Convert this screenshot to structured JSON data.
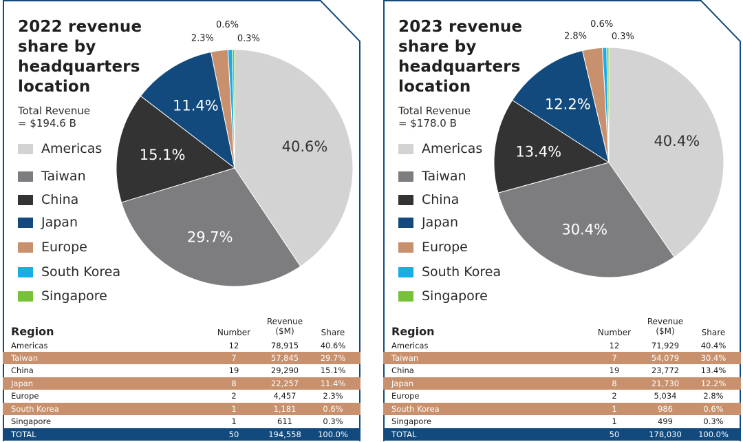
{
  "colors": {
    "Americas": "#d3d3d3",
    "Taiwan": "#7d7d80",
    "China": "#333333",
    "Japan": "#124a7e",
    "Europe": "#c8906c",
    "South Korea": "#17aee8",
    "Singapore": "#78c23a",
    "frame": "#124a7e",
    "row_highlight": "#c8906c"
  },
  "table_headers": {
    "region": "Region",
    "number": "Number",
    "revenue_line1": "Revenue",
    "revenue_line2": "($M)",
    "share": "Share"
  },
  "chart_data": [
    {
      "type": "pie",
      "title": "2022 revenue share by headquarters location",
      "subtitle_line1": "Total Revenue",
      "subtitle_line2": "= $194.6 B",
      "legend": [
        "Americas",
        "Taiwan",
        "China",
        "Japan",
        "Europe",
        "South Korea",
        "Singapore"
      ],
      "slices": [
        {
          "label": "Americas",
          "value": 40.6,
          "text": "40.6%"
        },
        {
          "label": "Taiwan",
          "value": 29.7,
          "text": "29.7%"
        },
        {
          "label": "China",
          "value": 15.1,
          "text": "15.1%"
        },
        {
          "label": "Japan",
          "value": 11.4,
          "text": "11.4%"
        },
        {
          "label": "Europe",
          "value": 2.3,
          "text": "2.3%"
        },
        {
          "label": "South Korea",
          "value": 0.6,
          "text": "0.6%"
        },
        {
          "label": "Singapore",
          "value": 0.3,
          "text": "0.3%"
        }
      ],
      "table": {
        "rows": [
          {
            "region": "Americas",
            "number": "12",
            "revenue": "78,915",
            "share": "40.6%"
          },
          {
            "region": "Taiwan",
            "number": "7",
            "revenue": "57,845",
            "share": "29.7%"
          },
          {
            "region": "China",
            "number": "19",
            "revenue": "29,290",
            "share": "15.1%"
          },
          {
            "region": "Japan",
            "number": "8",
            "revenue": "22,257",
            "share": "11.4%"
          },
          {
            "region": "Europe",
            "number": "2",
            "revenue": "4,457",
            "share": "2.3%"
          },
          {
            "region": "South Korea",
            "number": "1",
            "revenue": "1,181",
            "share": "0.6%"
          },
          {
            "region": "Singapore",
            "number": "1",
            "revenue": "611",
            "share": "0.3%"
          }
        ],
        "total": {
          "region": "TOTAL",
          "number": "50",
          "revenue": "194,558",
          "share": "100.0%"
        }
      }
    },
    {
      "type": "pie",
      "title": "2023 revenue share by headquarters location",
      "subtitle_line1": "Total Revenue",
      "subtitle_line2": "= $178.0 B",
      "legend": [
        "Americas",
        "Taiwan",
        "China",
        "Japan",
        "Europe",
        "South Korea",
        "Singapore"
      ],
      "slices": [
        {
          "label": "Americas",
          "value": 40.4,
          "text": "40.4%"
        },
        {
          "label": "Taiwan",
          "value": 30.4,
          "text": "30.4%"
        },
        {
          "label": "China",
          "value": 13.4,
          "text": "13.4%"
        },
        {
          "label": "Japan",
          "value": 12.2,
          "text": "12.2%"
        },
        {
          "label": "Europe",
          "value": 2.8,
          "text": "2.8%"
        },
        {
          "label": "South Korea",
          "value": 0.6,
          "text": "0.6%"
        },
        {
          "label": "Singapore",
          "value": 0.3,
          "text": "0.3%"
        }
      ],
      "table": {
        "rows": [
          {
            "region": "Americas",
            "number": "12",
            "revenue": "71,929",
            "share": "40.4%"
          },
          {
            "region": "Taiwan",
            "number": "7",
            "revenue": "54,079",
            "share": "30.4%"
          },
          {
            "region": "China",
            "number": "19",
            "revenue": "23,772",
            "share": "13.4%"
          },
          {
            "region": "Japan",
            "number": "8",
            "revenue": "21,730",
            "share": "12.2%"
          },
          {
            "region": "Europe",
            "number": "2",
            "revenue": "5,034",
            "share": "2.8%"
          },
          {
            "region": "South Korea",
            "number": "1",
            "revenue": "986",
            "share": "0.6%"
          },
          {
            "region": "Singapore",
            "number": "1",
            "revenue": "499",
            "share": "0.3%"
          }
        ],
        "total": {
          "region": "TOTAL",
          "number": "50",
          "revenue": "178,030",
          "share": "100.0%"
        }
      }
    }
  ]
}
